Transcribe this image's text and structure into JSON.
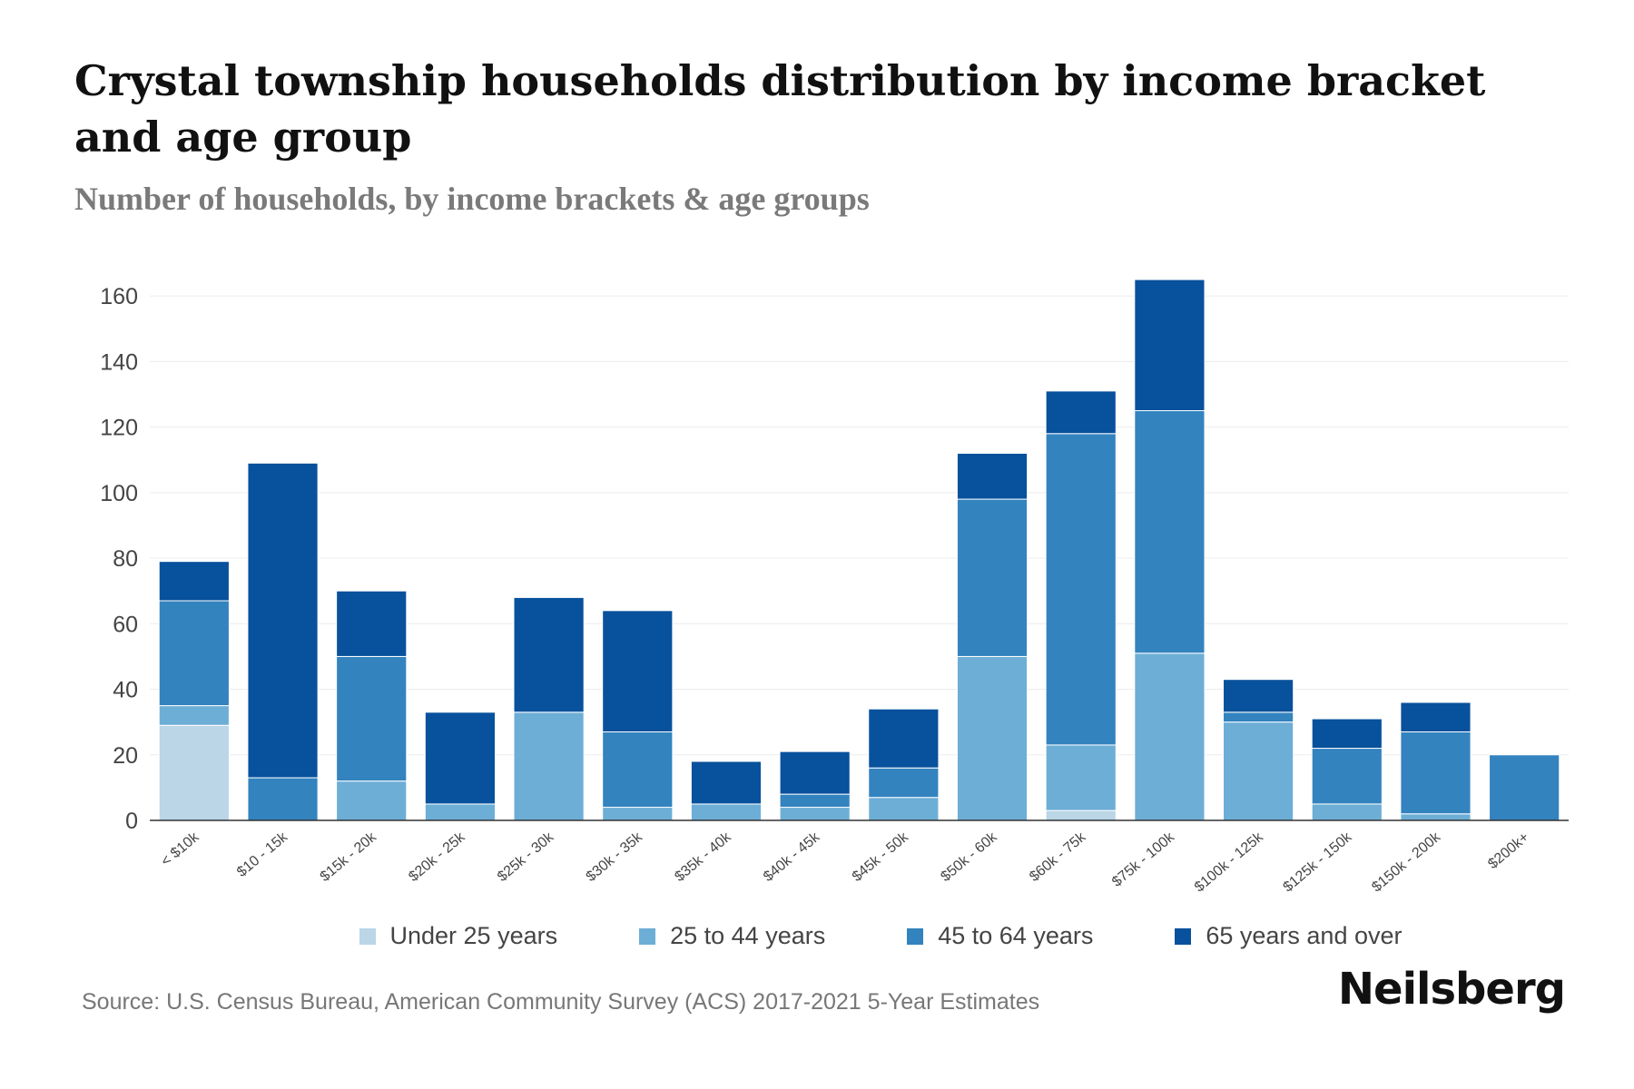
{
  "title": "Crystal township households distribution by income bracket and age group",
  "subtitle": "Number of households, by income brackets & age groups",
  "source": "Source: U.S. Census Bureau, American Community Survey (ACS) 2017-2021 5-Year Estimates",
  "brand": "Neilsberg",
  "chart_data": {
    "type": "bar",
    "stacked": true,
    "categories": [
      "< $10k",
      "$10 - 15k",
      "$15k - 20k",
      "$20k - 25k",
      "$25k - 30k",
      "$30k - 35k",
      "$35k - 40k",
      "$40k - 45k",
      "$45k - 50k",
      "$50k - 60k",
      "$60k - 75k",
      "$75k - 100k",
      "$100k - 125k",
      "$125k - 150k",
      "$150k - 200k",
      "$200k+"
    ],
    "series": [
      {
        "name": "Under 25 years",
        "color": "#bad6e7",
        "values": [
          29,
          0,
          0,
          0,
          0,
          0,
          0,
          0,
          0,
          0,
          3,
          0,
          0,
          0,
          0,
          0
        ]
      },
      {
        "name": "25 to 44 years",
        "color": "#6daed6",
        "values": [
          6,
          0,
          12,
          5,
          33,
          4,
          5,
          4,
          7,
          50,
          20,
          51,
          30,
          5,
          2,
          0
        ]
      },
      {
        "name": "45 to 64 years",
        "color": "#3383bf",
        "values": [
          32,
          13,
          38,
          0,
          0,
          23,
          0,
          4,
          9,
          48,
          95,
          74,
          3,
          17,
          25,
          20
        ]
      },
      {
        "name": "65 years and over",
        "color": "#08519c",
        "values": [
          12,
          96,
          20,
          28,
          35,
          37,
          13,
          13,
          18,
          14,
          13,
          40,
          10,
          9,
          9,
          0
        ]
      }
    ],
    "y_ticks": [
      0,
      20,
      40,
      60,
      80,
      100,
      120,
      140,
      160
    ],
    "ylim": [
      0,
      170
    ],
    "xlabel": "",
    "ylabel": "",
    "legend_position": "bottom"
  }
}
